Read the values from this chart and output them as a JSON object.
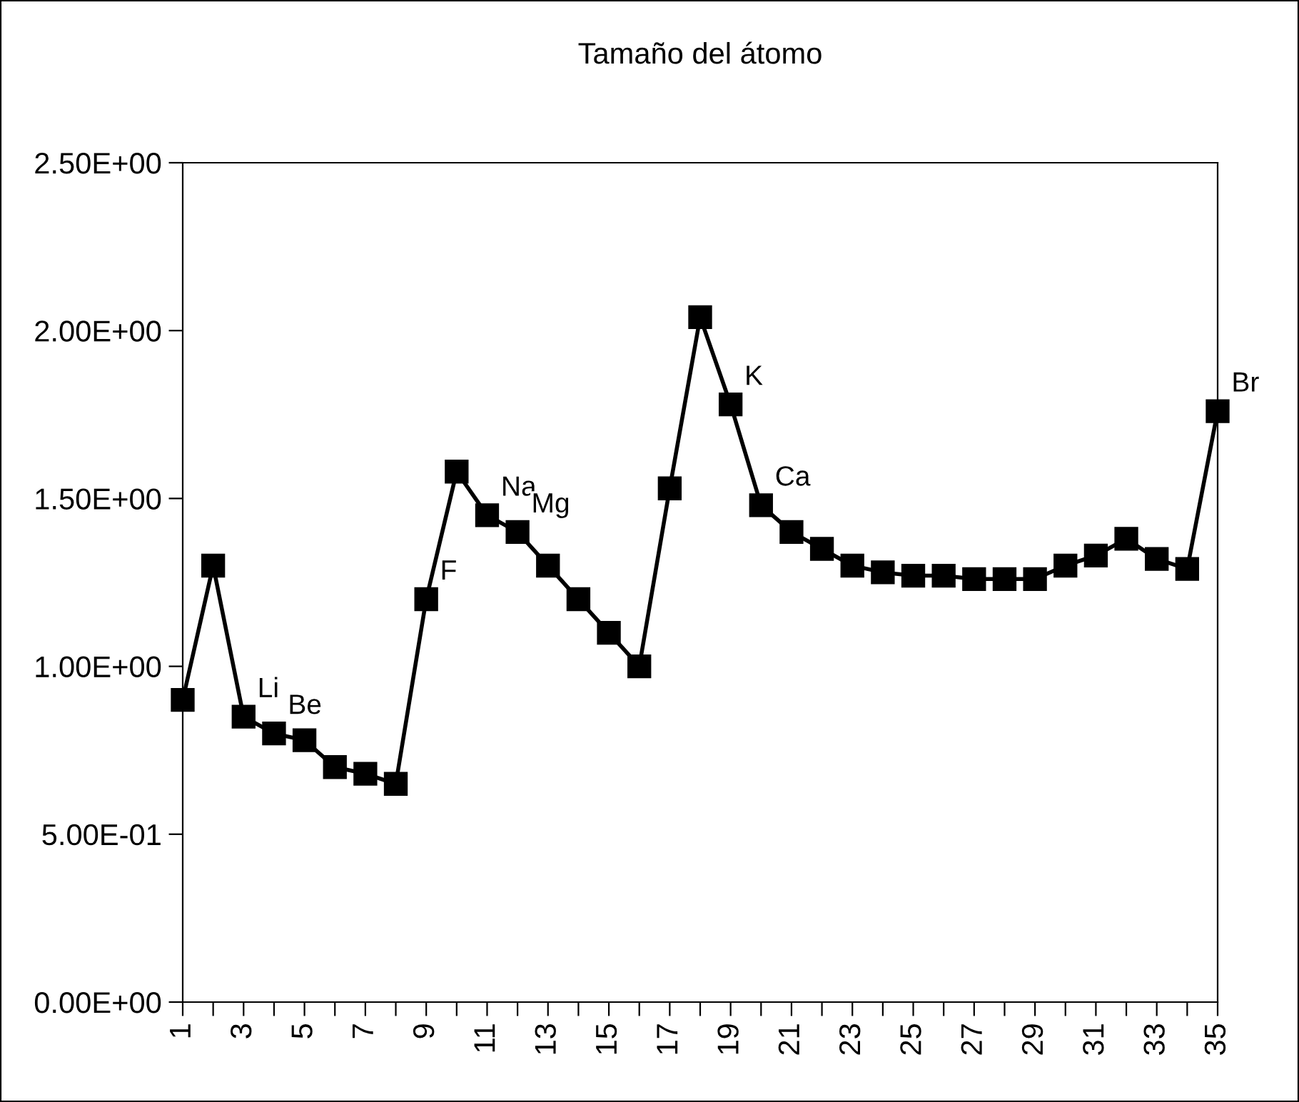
{
  "chart_data": {
    "type": "line",
    "title": "Tamaño del átomo",
    "categories": [
      "1",
      null,
      "3",
      null,
      "5",
      null,
      "7",
      null,
      "9",
      null,
      "11",
      null,
      "13",
      null,
      "15",
      null,
      "17",
      null,
      "19",
      null,
      "21",
      null,
      "23",
      null,
      "25",
      null,
      "27",
      null,
      "29",
      null,
      "31",
      null,
      "33",
      null,
      "35"
    ],
    "series": [
      {
        "color": "#000000",
        "values": [
          0.9,
          1.3,
          0.85,
          0.8,
          0.78,
          0.7,
          0.68,
          0.65,
          1.2,
          1.58,
          1.45,
          1.4,
          1.3,
          1.2,
          1.1,
          1.0,
          1.53,
          2.04,
          1.78,
          1.48,
          1.4,
          1.35,
          1.3,
          1.28,
          1.27,
          1.27,
          1.26,
          1.26,
          1.26,
          1.3,
          1.33,
          1.38,
          1.32,
          1.29,
          1.76
        ]
      }
    ],
    "ylim": [
      0,
      2.5
    ],
    "yticks": [
      {
        "value": 0,
        "label": "0.00E+00"
      },
      {
        "value": 0.5,
        "label": "5.00E-01"
      },
      {
        "value": 1.0,
        "label": "1.00E+00"
      },
      {
        "value": 1.5,
        "label": "1.50E+00"
      },
      {
        "value": 2.0,
        "label": "2.00E+00"
      },
      {
        "value": 2.5,
        "label": "2.50E+00"
      }
    ],
    "annotations": [
      {
        "text": "Li",
        "x": "3",
        "y": 0.85
      },
      "Be",
      {
        "text": "F",
        "x": "9",
        "y": 1.2
      },
      {
        "text": "Na",
        "x": "11",
        "y": 1.45
      },
      "Mg",
      {
        "text": "K",
        "x": "19",
        "y": 1.78
      },
      "Ca",
      {
        "text": "Br",
        "x": "35",
        "y": 1.76
      }
    ],
    "marker": "square",
    "line_style": "solid",
    "grid": false,
    "legend": false
  }
}
